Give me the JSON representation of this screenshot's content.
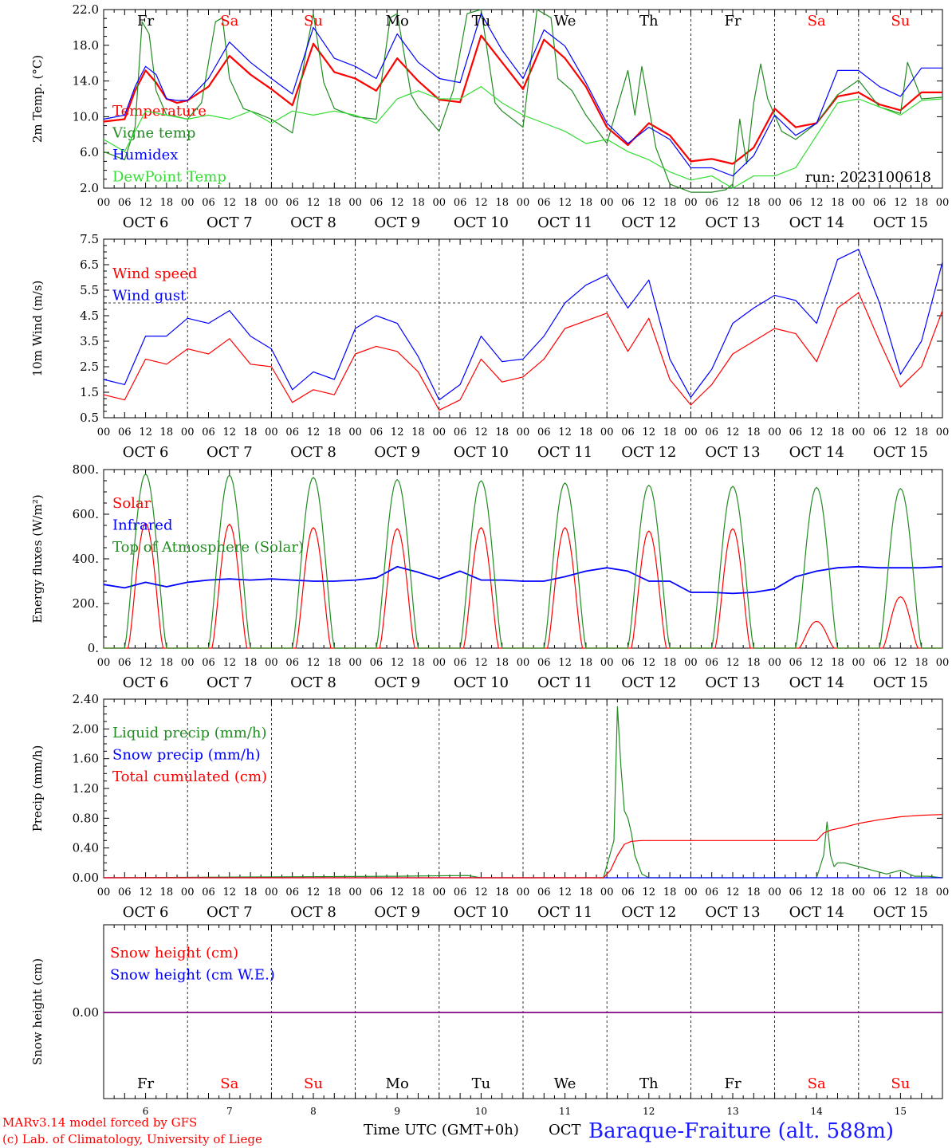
{
  "colors": {
    "red": "#ff0000",
    "dark_green": "#228b22",
    "blue": "#0000ff",
    "light_green": "#33dd33",
    "purple": "#800080",
    "weekend": "#ff0000",
    "weekday": "#000000",
    "station": "#1a1aff"
  },
  "x_axis": {
    "hour_ticks": [
      "00",
      "06",
      "12",
      "18"
    ],
    "end_tick": "00",
    "month": "OCT",
    "days": [
      "6",
      "7",
      "8",
      "9",
      "10",
      "11",
      "12",
      "13",
      "14",
      "15"
    ],
    "weekdays": [
      "Fr",
      "Sa",
      "Su",
      "Mo",
      "Tu",
      "We",
      "Th",
      "Fr",
      "Sa",
      "Su"
    ],
    "weekend_flags": [
      false,
      true,
      true,
      false,
      false,
      false,
      false,
      false,
      true,
      true
    ]
  },
  "footer": {
    "model_line": "MARv3.14 model forced by GFS",
    "lab_line": "(c) Lab. of Climatology, University of Liege",
    "axis_title": "Time UTC (GMT+0h)",
    "month": "OCT",
    "station": "Baraque-Fraiture (alt. 588m)"
  },
  "chart_data": [
    {
      "type": "line",
      "ylabel": "2m Temp. (°C)",
      "ylim": [
        2.0,
        24.0
      ],
      "yticks": [
        "2.0",
        "6.0",
        "10.0",
        "14.0",
        "18.0",
        "22.0"
      ],
      "annotation": "run: 2023100618",
      "x_unit": "hours since OCT 6 00 UTC",
      "series": [
        {
          "name": "Temperature",
          "color": "red",
          "x": [
            0,
            6,
            9,
            12,
            15,
            18,
            21,
            24,
            30,
            36,
            42,
            48,
            54,
            60,
            66,
            72,
            78,
            84,
            90,
            96,
            102,
            108,
            114,
            120,
            126,
            132,
            138,
            144,
            150,
            156,
            162,
            168,
            174,
            180,
            186,
            192,
            198,
            204,
            210,
            216,
            222,
            228,
            234,
            240
          ],
          "values": [
            10.2,
            10.5,
            14.0,
            16.5,
            15.0,
            13.0,
            12.5,
            12.8,
            14.5,
            18.3,
            16.0,
            14.2,
            12.2,
            19.8,
            16.3,
            15.5,
            14.0,
            18.0,
            15.2,
            12.9,
            12.6,
            20.8,
            17.5,
            14.2,
            20.3,
            18.0,
            14.5,
            9.5,
            7.3,
            10.0,
            8.5,
            5.3,
            5.6,
            5.0,
            7.0,
            11.8,
            9.5,
            10.0,
            13.3,
            13.8,
            12.3,
            11.6,
            13.8,
            13.8
          ]
        },
        {
          "name": "Vigne temp",
          "color": "dark_green",
          "x": [
            0,
            6,
            9,
            11,
            13,
            15,
            18,
            21,
            24,
            28,
            32,
            34,
            36,
            40,
            44,
            48,
            54,
            58,
            60,
            63,
            66,
            72,
            78,
            82,
            84,
            88,
            90,
            96,
            100,
            104,
            108,
            112,
            114,
            120,
            124,
            128,
            130,
            134,
            138,
            144,
            150,
            152,
            154,
            156,
            158,
            162,
            168,
            174,
            178,
            180,
            182,
            184,
            186,
            188,
            190,
            194,
            198,
            204,
            210,
            216,
            222,
            228,
            230,
            234,
            240
          ],
          "values": [
            6.5,
            5.5,
            9.5,
            22.5,
            21.0,
            14.0,
            11.0,
            10.8,
            10.5,
            12.5,
            22.5,
            23.0,
            15.5,
            11.8,
            11.2,
            10.5,
            8.8,
            19.0,
            23.5,
            15.0,
            11.8,
            10.8,
            10.5,
            23.0,
            23.5,
            13.5,
            12.0,
            9.0,
            14.0,
            23.5,
            24.0,
            12.5,
            11.5,
            9.5,
            24.0,
            23.0,
            15.5,
            14.0,
            11.0,
            7.5,
            16.5,
            11.0,
            17.0,
            12.0,
            7.0,
            2.5,
            1.5,
            1.5,
            1.8,
            2.5,
            10.5,
            5.0,
            12.5,
            17.3,
            13.0,
            9.0,
            8.0,
            10.0,
            13.5,
            15.3,
            12.0,
            11.2,
            17.5,
            13.0,
            13.2
          ]
        },
        {
          "name": "Humidex",
          "color": "blue",
          "x": [
            0,
            6,
            9,
            12,
            15,
            18,
            21,
            24,
            30,
            36,
            42,
            48,
            54,
            60,
            66,
            72,
            78,
            84,
            90,
            96,
            102,
            108,
            114,
            120,
            126,
            132,
            138,
            144,
            150,
            156,
            162,
            168,
            174,
            180,
            186,
            192,
            198,
            204,
            210,
            216,
            222,
            228,
            234,
            240
          ],
          "values": [
            10.5,
            11.0,
            14.5,
            17.0,
            16.0,
            13.0,
            12.8,
            12.8,
            15.5,
            20.0,
            17.5,
            15.5,
            13.6,
            21.8,
            18.0,
            17.0,
            15.5,
            21.0,
            17.5,
            15.5,
            15.0,
            23.5,
            19.0,
            15.5,
            21.5,
            19.5,
            15.0,
            10.0,
            7.5,
            9.5,
            8.0,
            4.5,
            4.5,
            3.5,
            6.0,
            11.0,
            8.5,
            10.0,
            16.5,
            16.5,
            14.5,
            13.3,
            16.8,
            16.8
          ]
        },
        {
          "name": "DewPoint Temp",
          "color": "light_green",
          "x": [
            0,
            6,
            12,
            18,
            24,
            30,
            36,
            42,
            48,
            54,
            60,
            66,
            72,
            78,
            84,
            90,
            96,
            102,
            108,
            114,
            120,
            126,
            132,
            138,
            144,
            150,
            156,
            162,
            168,
            174,
            180,
            186,
            192,
            198,
            204,
            210,
            216,
            222,
            228,
            234,
            240
          ],
          "values": [
            8.0,
            6.5,
            11.5,
            11.0,
            10.5,
            11.0,
            10.5,
            11.5,
            10.0,
            11.5,
            11.0,
            11.5,
            11.0,
            10.0,
            13.0,
            14.0,
            13.0,
            13.0,
            14.5,
            12.5,
            11.0,
            10.0,
            9.0,
            7.5,
            8.0,
            6.5,
            5.5,
            4.0,
            3.0,
            3.5,
            2.0,
            3.5,
            3.5,
            4.5,
            8.5,
            12.5,
            13.0,
            12.0,
            11.0,
            12.8,
            13.0
          ]
        }
      ]
    },
    {
      "type": "line",
      "ylabel": "10m Wind (m/s)",
      "ylim": [
        0.5,
        7.5
      ],
      "yticks": [
        "0.5",
        "1.5",
        "2.5",
        "3.5",
        "4.5",
        "5.5",
        "6.5",
        "7.5"
      ],
      "reference_line": 5.0,
      "x_unit": "hours since OCT 6 00 UTC",
      "series": [
        {
          "name": "Wind speed",
          "color": "red",
          "x": [
            0,
            6,
            12,
            18,
            24,
            30,
            36,
            42,
            48,
            54,
            60,
            66,
            72,
            78,
            84,
            90,
            96,
            102,
            108,
            114,
            120,
            126,
            132,
            138,
            144,
            150,
            156,
            162,
            168,
            174,
            180,
            186,
            192,
            198,
            204,
            210,
            216,
            222,
            228,
            234,
            240
          ],
          "values": [
            1.4,
            1.2,
            2.8,
            2.6,
            3.2,
            3.0,
            3.6,
            2.6,
            2.5,
            1.1,
            1.6,
            1.4,
            3.0,
            3.3,
            3.1,
            2.3,
            0.8,
            1.2,
            2.8,
            1.9,
            2.1,
            2.8,
            4.0,
            4.3,
            4.6,
            3.1,
            4.4,
            2.0,
            1.0,
            1.8,
            3.0,
            3.5,
            4.0,
            3.8,
            2.7,
            4.8,
            5.4,
            3.5,
            1.7,
            2.5,
            4.7
          ]
        },
        {
          "name": "Wind gust",
          "color": "blue",
          "x": [
            0,
            6,
            12,
            18,
            24,
            30,
            36,
            42,
            48,
            54,
            60,
            66,
            72,
            78,
            84,
            90,
            96,
            102,
            108,
            114,
            120,
            126,
            132,
            138,
            144,
            150,
            156,
            162,
            168,
            174,
            180,
            186,
            192,
            198,
            204,
            210,
            216,
            222,
            228,
            234,
            240
          ],
          "values": [
            2.0,
            1.8,
            3.7,
            3.7,
            4.4,
            4.2,
            4.7,
            3.7,
            3.2,
            1.6,
            2.3,
            2.0,
            4.0,
            4.5,
            4.2,
            2.9,
            1.2,
            1.8,
            3.7,
            2.7,
            2.8,
            3.7,
            5.0,
            5.7,
            6.1,
            4.8,
            5.9,
            2.8,
            1.3,
            2.4,
            4.2,
            4.8,
            5.3,
            5.1,
            4.2,
            6.7,
            7.1,
            5.0,
            2.2,
            3.5,
            6.6
          ]
        }
      ]
    },
    {
      "type": "line",
      "ylabel": "Energy fluxes (W/m²)",
      "ylim": [
        0,
        800
      ],
      "yticks": [
        "0.",
        "200.",
        "400.",
        "600.",
        "800."
      ],
      "x_unit": "hours since OCT 6 00 UTC",
      "daily_peak_unit": "W/m², one value per day OCT 6 … OCT 15",
      "series": [
        {
          "name": "Solar",
          "color": "red",
          "daily_peaks": [
            560,
            555,
            540,
            535,
            540,
            540,
            525,
            535,
            120,
            230
          ]
        },
        {
          "name": "Infrared",
          "color": "blue",
          "x": [
            0,
            6,
            12,
            18,
            24,
            30,
            36,
            42,
            48,
            54,
            60,
            66,
            72,
            78,
            84,
            90,
            96,
            102,
            108,
            114,
            120,
            126,
            132,
            138,
            144,
            150,
            156,
            162,
            168,
            174,
            180,
            186,
            192,
            198,
            204,
            210,
            216,
            222,
            228,
            234,
            240
          ],
          "values": [
            285,
            270,
            295,
            275,
            295,
            305,
            310,
            305,
            310,
            305,
            300,
            300,
            305,
            315,
            365,
            340,
            310,
            345,
            305,
            305,
            300,
            300,
            320,
            345,
            360,
            345,
            300,
            300,
            250,
            250,
            245,
            250,
            265,
            320,
            345,
            360,
            365,
            360,
            360,
            360,
            365
          ]
        },
        {
          "name": "Top of Atmosphere (Solar)",
          "color": "dark_green",
          "daily_peaks": [
            780,
            775,
            765,
            755,
            750,
            740,
            730,
            725,
            720,
            715
          ]
        }
      ]
    },
    {
      "type": "line",
      "ylabel": "Precip (mm/h)",
      "ylim": [
        0,
        2.4
      ],
      "yticks": [
        "0.00",
        "0.40",
        "0.80",
        "1.20",
        "1.60",
        "2.00",
        "2.40"
      ],
      "x_unit": "hours since OCT 6 00 UTC",
      "series": [
        {
          "name": "Liquid precip (mm/h)",
          "color": "dark_green",
          "x": [
            0,
            84,
            104,
            108,
            143,
            146,
            147,
            148,
            149,
            150,
            151,
            152,
            154,
            156,
            160,
            192,
            204,
            206,
            207,
            208,
            209,
            210,
            212,
            216,
            220,
            224,
            228,
            232,
            236,
            240
          ],
          "values": [
            0,
            0.02,
            0.03,
            0,
            0,
            0.5,
            2.3,
            1.5,
            0.9,
            0.8,
            0.6,
            0.3,
            0.05,
            0,
            0,
            0,
            0,
            0.3,
            0.75,
            0.3,
            0.15,
            0.2,
            0.2,
            0.15,
            0.1,
            0.05,
            0.1,
            0.02,
            0.02,
            0
          ]
        },
        {
          "name": "Snow precip (mm/h)",
          "color": "blue",
          "x": [
            0,
            240
          ],
          "values": [
            0,
            0
          ]
        },
        {
          "name": "Total cumulated (cm)",
          "color": "red",
          "x": [
            0,
            143,
            145,
            147,
            149,
            151,
            154,
            160,
            204,
            206,
            208,
            212,
            216,
            222,
            228,
            234,
            240
          ],
          "values": [
            0,
            0,
            0.1,
            0.3,
            0.45,
            0.49,
            0.5,
            0.5,
            0.5,
            0.6,
            0.64,
            0.68,
            0.73,
            0.78,
            0.82,
            0.84,
            0.85
          ]
        }
      ]
    },
    {
      "type": "line",
      "ylabel": "Snow height (cm)",
      "yticks": [
        "0.00"
      ],
      "x_unit": "hours since OCT 6 00 UTC",
      "series": [
        {
          "name": "Snow height (cm)",
          "color": "red",
          "x": [
            0,
            240
          ],
          "values": [
            0,
            0
          ]
        },
        {
          "name": "Snow height (cm W.E.)",
          "color": "blue",
          "x": [
            0,
            240
          ],
          "values": [
            0,
            0
          ]
        }
      ]
    }
  ]
}
